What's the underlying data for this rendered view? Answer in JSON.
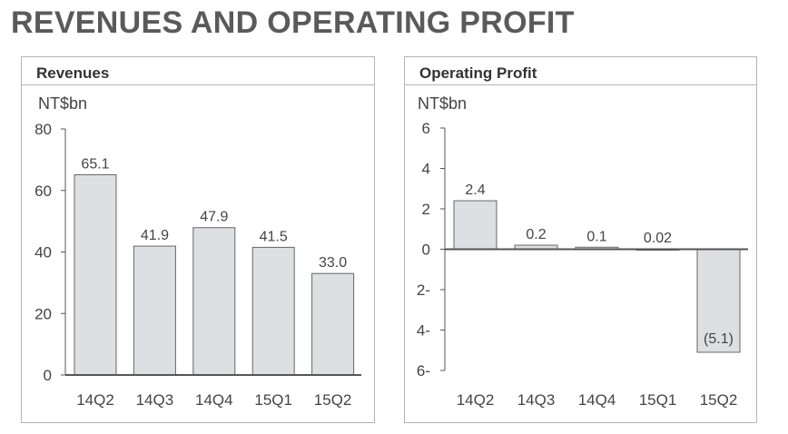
{
  "page_title": "REVENUES AND OPERATING PROFIT",
  "colors": {
    "bar_fill": "#dedfe2",
    "bar_stroke": "#666666",
    "axis": "#555555",
    "title": "#5a5a5a"
  },
  "chart_data": [
    {
      "type": "bar",
      "title": "Revenues",
      "unit": "NT$bn",
      "categories": [
        "14Q2",
        "14Q3",
        "14Q4",
        "15Q1",
        "15Q2"
      ],
      "values": [
        65.1,
        41.9,
        47.9,
        41.5,
        33.0
      ],
      "data_labels": [
        "65.1",
        "41.9",
        "47.9",
        "41.5",
        "33.0"
      ],
      "ylim": [
        0,
        80
      ],
      "yticks": [
        0,
        20,
        40,
        60,
        80
      ],
      "ytick_labels": [
        "0",
        "20",
        "40",
        "60",
        "80"
      ],
      "grid": false,
      "legend": "none"
    },
    {
      "type": "bar",
      "title": "Operating Profit",
      "unit": "NT$bn",
      "categories": [
        "14Q2",
        "14Q3",
        "14Q4",
        "15Q1",
        "15Q2"
      ],
      "values": [
        2.4,
        0.2,
        0.1,
        0.02,
        -5.1
      ],
      "data_labels": [
        "2.4",
        "0.2",
        "0.1",
        "0.02",
        "(5.1)"
      ],
      "ylim": [
        -6,
        6
      ],
      "yticks": [
        6,
        4,
        2,
        0,
        -2,
        -4,
        -6
      ],
      "ytick_labels": [
        "6",
        "4",
        "2",
        "0",
        "2-",
        "4-",
        "6-"
      ],
      "grid": false,
      "legend": "none"
    }
  ]
}
